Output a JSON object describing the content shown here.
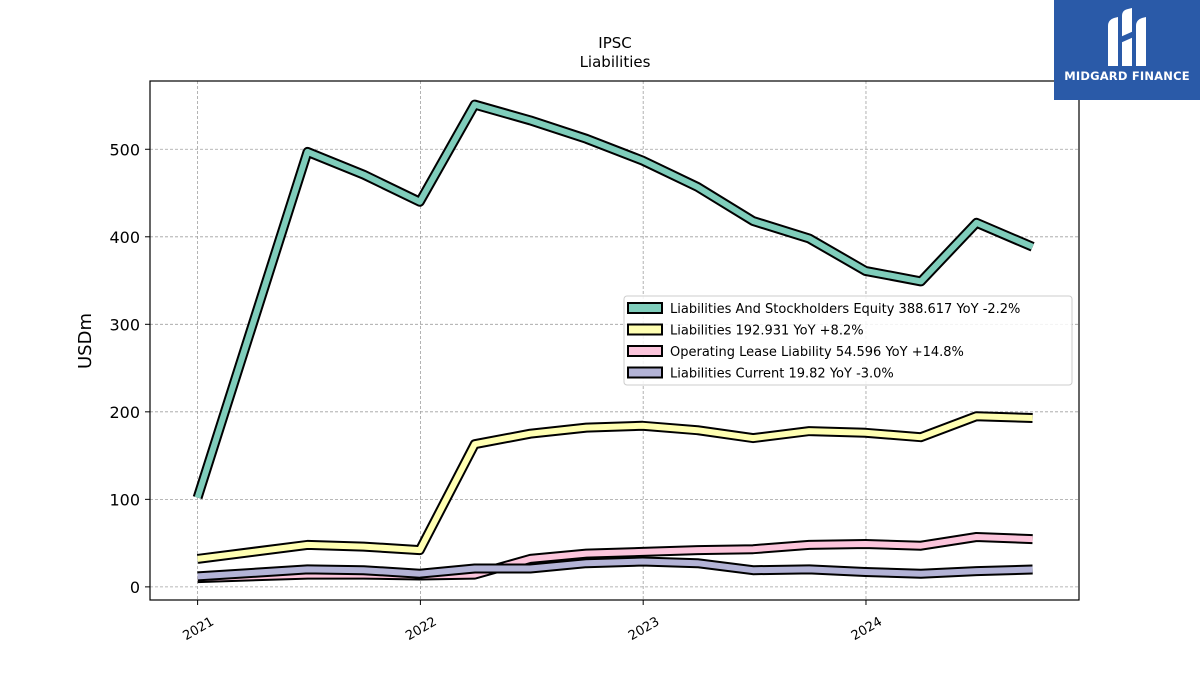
{
  "brand": {
    "name": "MIDGARD FINANCE"
  },
  "chart_data": {
    "type": "line",
    "title": "IPSC",
    "subtitle": "Liabilities",
    "xlabel": "",
    "ylabel": "USDm",
    "x_ticks": [
      "2021",
      "2022",
      "2023",
      "2024"
    ],
    "y_ticks": [
      0,
      100,
      200,
      300,
      400,
      500
    ],
    "xlim": [
      "2020-10-15",
      "2024-12-15"
    ],
    "ylim": [
      -15,
      578
    ],
    "grid": true,
    "legend_position": "center-right",
    "x": [
      "2021-01-01",
      "2021-06-30",
      "2021-09-30",
      "2021-12-31",
      "2022-03-31",
      "2022-06-30",
      "2022-09-30",
      "2022-12-31",
      "2023-03-31",
      "2023-06-30",
      "2023-09-30",
      "2023-12-31",
      "2024-03-31",
      "2024-06-30",
      "2024-09-30"
    ],
    "series": [
      {
        "name": "Liabilities And Stockholders Equity",
        "legend_label": "Liabilities And Stockholders Equity  388.617 YoY -2.2%",
        "color": "#7fcdbb",
        "values": [
          102,
          497,
          471,
          440,
          551,
          533,
          512,
          487,
          457,
          418,
          398,
          361,
          349,
          416,
          388.617
        ]
      },
      {
        "name": "Liabilities",
        "legend_label": "Liabilities  192.931 YoY +8.2%",
        "color": "#ffffb2",
        "values": [
          32,
          48,
          46,
          42,
          163,
          175,
          182,
          184,
          179,
          170,
          178,
          176,
          171,
          195,
          192.931
        ]
      },
      {
        "name": "Operating Lease Liability",
        "legend_label": "Operating Lease Liability  54.596 YoY +14.8%",
        "color": "#fcc5dc",
        "values": [
          10,
          14,
          14,
          13,
          14,
          32,
          38,
          40,
          42,
          43,
          48,
          49,
          47,
          57,
          54.596
        ]
      },
      {
        "name": "Liabilities Current",
        "legend_label": "Liabilities Current  19.82 YoY -3.0%",
        "color": "#b3b3d6",
        "values": [
          12,
          20,
          19,
          15,
          21,
          21,
          27,
          29,
          27,
          19,
          20,
          17,
          15,
          18,
          19.82
        ]
      }
    ]
  }
}
